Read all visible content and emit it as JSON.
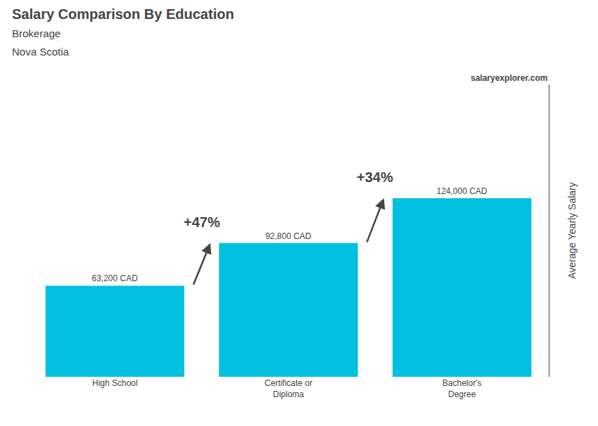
{
  "chart_data": {
    "type": "bar",
    "title": "Salary Comparison By Education",
    "subtitle": [
      "Brokerage",
      "Nova Scotia"
    ],
    "categories": [
      "High School",
      "Certificate or\nDiploma",
      "Bachelor's\nDegree"
    ],
    "values": [
      63200,
      92800,
      124000
    ],
    "value_labels": [
      "63,200 CAD",
      "92,800 CAD",
      "124,000 CAD"
    ],
    "data_labels": true,
    "color": "#00BFDF",
    "y_label": "Average Yearly Salary",
    "ylim": [
      0,
      203000
    ],
    "tick_labels": "x",
    "grid": false,
    "annotations": [
      {
        "text": "+47%",
        "from": "High School",
        "to": "Certificate or\nDiploma"
      },
      {
        "text": "+34%",
        "from": "Certificate or\nDiploma",
        "to": "Bachelor's\nDegree"
      },
      {
        "text": "salaryexplorer.com"
      }
    ]
  }
}
